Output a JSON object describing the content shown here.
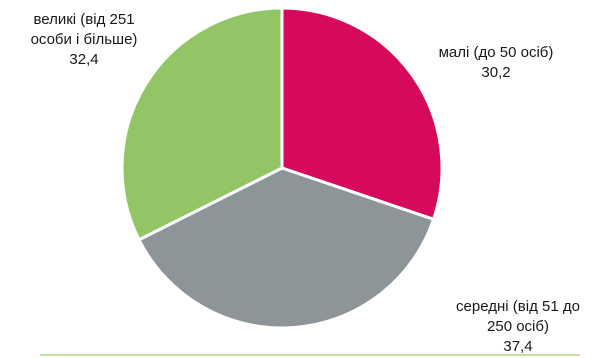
{
  "chart_data": {
    "type": "pie",
    "title": "",
    "slices": [
      {
        "name": "малі (до 50 осіб)",
        "label_lines": [
          "малі (до 50 осіб)"
        ],
        "value": 30.2,
        "value_label": "30,2",
        "color": "#d6095c"
      },
      {
        "name": "середні (від 51 до 250 осіб)",
        "label_lines": [
          "середні  (від 51 до",
          "250 осіб)"
        ],
        "value": 37.4,
        "value_label": "37,4",
        "color": "#8e9599"
      },
      {
        "name": "великі (від 251 особи і більше)",
        "label_lines": [
          "великі (від 251",
          "особи і більше)"
        ],
        "value": 32.4,
        "value_label": "32,4",
        "color": "#92c566"
      }
    ],
    "start_angle_deg": 0,
    "direction": "clockwise",
    "legend": "none"
  }
}
